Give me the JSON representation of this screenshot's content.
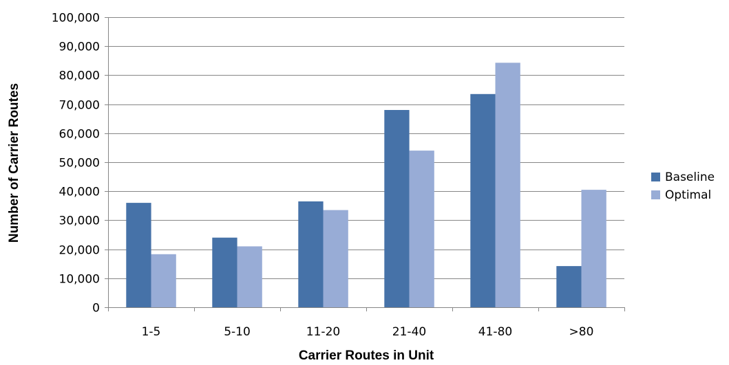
{
  "chart_data": {
    "type": "bar",
    "categories": [
      "1-5",
      "5-10",
      "11-20",
      "21-40",
      "41-80",
      ">80"
    ],
    "series": [
      {
        "name": "Baseline",
        "color": "#4672A8",
        "values": [
          36000,
          24000,
          36500,
          68000,
          73500,
          14200
        ]
      },
      {
        "name": "Optimal",
        "color": "#98ACD6",
        "values": [
          18300,
          21000,
          33500,
          54000,
          84300,
          40500
        ]
      }
    ],
    "title": "",
    "xlabel": "Carrier Routes in Unit",
    "ylabel": "Number of Carrier Routes",
    "ylim": [
      0,
      100000
    ],
    "yticks": [
      0,
      10000,
      20000,
      30000,
      40000,
      50000,
      60000,
      70000,
      80000,
      90000,
      100000
    ],
    "ytick_labels": [
      "0",
      "10,000",
      "20,000",
      "30,000",
      "40,000",
      "50,000",
      "60,000",
      "70,000",
      "80,000",
      "90,000",
      "100,000"
    ],
    "grid": true,
    "legend": "right"
  }
}
